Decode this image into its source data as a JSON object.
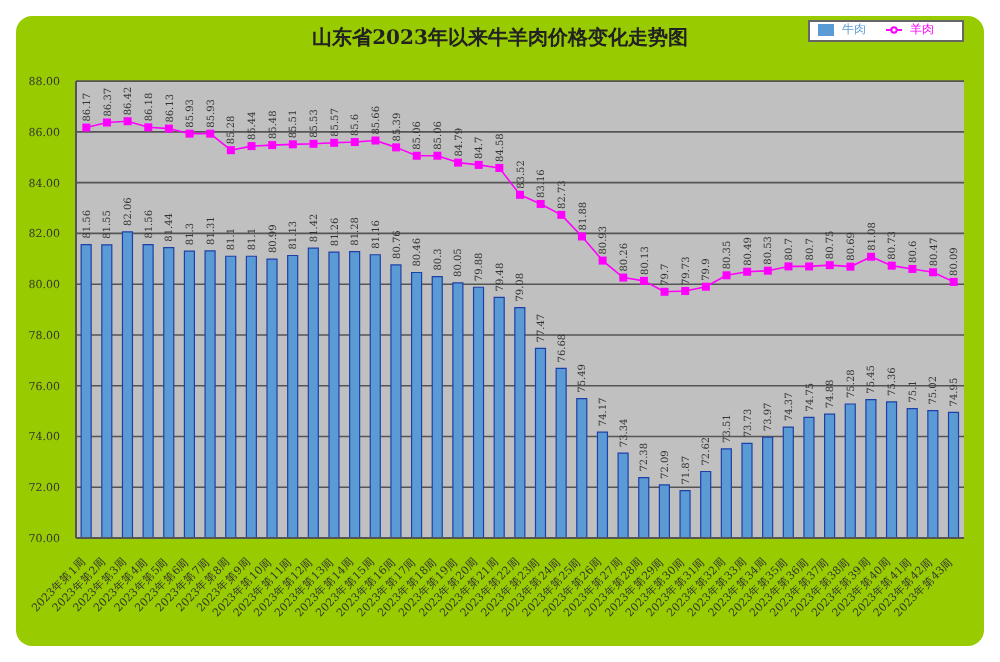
{
  "chart_data": {
    "type": "bar",
    "title": "山东省2023年以来牛羊肉价格变化走势图",
    "categories": [
      "2023年第1周",
      "2023年第2周",
      "2023年第3周",
      "2023年第4周",
      "2023年第5周",
      "2023年第6周",
      "2023年第7周",
      "2023年第8周",
      "2023年第9周",
      "2023年第10周",
      "2023年第11周",
      "2023年第12周",
      "2023年第13周",
      "2023年第14周",
      "2023年第15周",
      "2023年第16周",
      "2023年第17周",
      "2023年第18周",
      "2023年第19周",
      "2023年第20周",
      "2023年第21周",
      "2023年第22周",
      "2023年第23周",
      "2023年第24周",
      "2023年第25周",
      "2023年第26周",
      "2023年第27周",
      "2023年第28周",
      "2023年第29周",
      "2023年第30周",
      "2023年第31周",
      "2023年第32周",
      "2023年第33周",
      "2023年第34周",
      "2023年第35周",
      "2023年第36周",
      "2023年第37周",
      "2023年第38周",
      "2023年第39周",
      "2023年第40周",
      "2023年第41周",
      "2023年第42周",
      "2023年第43周"
    ],
    "series": [
      {
        "name": "牛肉",
        "color": "#5b9bd5",
        "values": [
          81.56,
          81.55,
          82.06,
          81.56,
          81.44,
          81.3,
          81.31,
          81.1,
          81.1,
          80.99,
          81.13,
          81.42,
          81.26,
          81.28,
          81.16,
          80.76,
          80.46,
          80.3,
          80.05,
          79.88,
          79.48,
          79.08,
          77.47,
          76.68,
          75.49,
          74.17,
          73.34,
          72.38,
          72.09,
          71.87,
          72.62,
          73.51,
          73.73,
          73.97,
          74.37,
          74.75,
          74.88,
          75.28,
          75.45,
          75.36,
          75.1,
          75.02,
          74.95
        ]
      },
      {
        "name": "羊肉",
        "type": "line",
        "color": "#ff00ff",
        "values": [
          86.17,
          86.37,
          86.42,
          86.18,
          86.13,
          85.93,
          85.93,
          85.28,
          85.44,
          85.48,
          85.51,
          85.53,
          85.57,
          85.6,
          85.66,
          85.39,
          85.06,
          85.06,
          84.79,
          84.7,
          84.58,
          83.52,
          83.16,
          82.73,
          81.88,
          80.93,
          80.26,
          80.13,
          79.7,
          79.73,
          79.9,
          80.35,
          80.49,
          80.53,
          80.7,
          80.7,
          80.75,
          80.69,
          81.08,
          80.73,
          80.6,
          80.47,
          80.09
        ]
      }
    ],
    "ylim": [
      70,
      88
    ],
    "yticks": [
      {
        "value": 70,
        "label": "70.00"
      },
      {
        "value": 72,
        "label": "72.00"
      },
      {
        "value": 74,
        "label": "74.00"
      },
      {
        "value": 76,
        "label": "76.00"
      },
      {
        "value": 78,
        "label": "78.00"
      },
      {
        "value": 80,
        "label": "80.00"
      },
      {
        "value": 82,
        "label": "82.00"
      },
      {
        "value": 84,
        "label": "84.00"
      },
      {
        "value": 86,
        "label": "86.00"
      },
      {
        "value": 88,
        "label": "88.00"
      }
    ],
    "grid": "y",
    "legend": "top right",
    "marker": "square",
    "line_style": "solid",
    "data_labels": true
  }
}
